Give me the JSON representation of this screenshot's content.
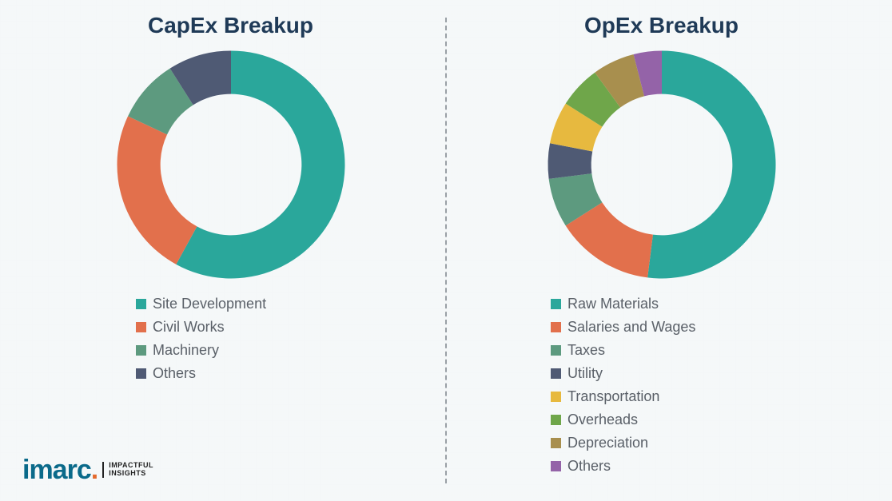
{
  "charts": {
    "capex": {
      "title": "CapEx Breakup",
      "type": "donut",
      "innerRadiusPct": 62,
      "outerRadiusPct": 100,
      "rotationDeg": 0,
      "title_fontsize": 28,
      "title_color": "#1f3a57",
      "legend_fontsize": 18,
      "legend_color": "#5a6068",
      "series": [
        {
          "label": "Site Development",
          "value": 58,
          "color": "#2aa79b"
        },
        {
          "label": "Civil Works",
          "value": 24,
          "color": "#e2704c"
        },
        {
          "label": "Machinery",
          "value": 9,
          "color": "#5d9a7f"
        },
        {
          "label": "Others",
          "value": 9,
          "color": "#4f5a74"
        }
      ]
    },
    "opex": {
      "title": "OpEx Breakup",
      "type": "donut",
      "innerRadiusPct": 62,
      "outerRadiusPct": 100,
      "rotationDeg": 0,
      "title_fontsize": 28,
      "title_color": "#1f3a57",
      "legend_fontsize": 18,
      "legend_color": "#5a6068",
      "series": [
        {
          "label": "Raw Materials",
          "value": 52,
          "color": "#2aa79b"
        },
        {
          "label": "Salaries and Wages",
          "value": 14,
          "color": "#e2704c"
        },
        {
          "label": "Taxes",
          "value": 7,
          "color": "#5d9a7f"
        },
        {
          "label": "Utility",
          "value": 5,
          "color": "#4f5a74"
        },
        {
          "label": "Transportation",
          "value": 6,
          "color": "#e7b93f"
        },
        {
          "label": "Overheads",
          "value": 6,
          "color": "#6fa64a"
        },
        {
          "label": "Depreciation",
          "value": 6,
          "color": "#a88f4e"
        },
        {
          "label": "Others",
          "value": 4,
          "color": "#9463a8"
        }
      ]
    }
  },
  "background_color": "#f2f4f5",
  "divider_color": "#9aa0a6",
  "logo": {
    "brand": "imarc",
    "tagline1": "IMPACTFUL",
    "tagline2": "INSIGHTS",
    "brand_color": "#0a6a8a",
    "dot_color": "#e46a2e"
  }
}
